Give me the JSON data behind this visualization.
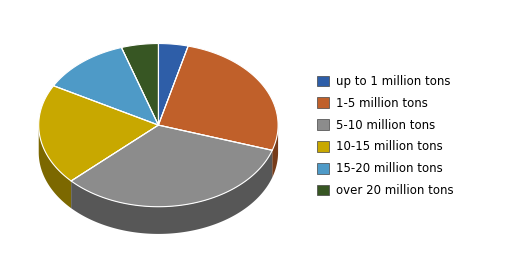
{
  "labels": [
    "up to 1 million tons",
    "1-5 million tons",
    "5-10 million tons",
    "10-15 million tons",
    "15-20 million tons",
    "over 20 million tons"
  ],
  "values": [
    4,
    26,
    33,
    20,
    12,
    5
  ],
  "colors": [
    "#2E5EA8",
    "#C0602A",
    "#8C8C8C",
    "#C8A800",
    "#4E9AC7",
    "#375623"
  ],
  "background_color": "#ffffff",
  "legend_fontsize": 8.5
}
